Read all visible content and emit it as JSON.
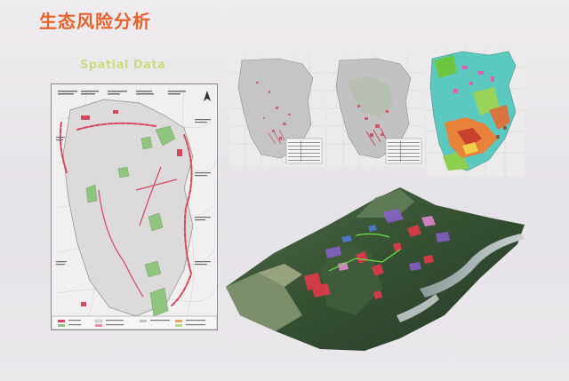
{
  "slide": {
    "title": "生态风险分析",
    "subtitle": "Spatial Data"
  },
  "colors": {
    "title": "#e8622c",
    "subtitle": "#c7dc7e",
    "background": "#e9e6ea"
  }
}
